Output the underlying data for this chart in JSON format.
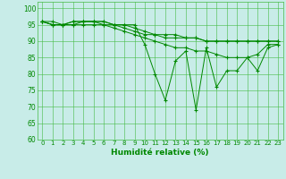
{
  "xlabel": "Humidité relative (%)",
  "background_color": "#c8ece8",
  "grid_color": "#44bb44",
  "line_color": "#008800",
  "xlim": [
    -0.5,
    23.5
  ],
  "ylim": [
    60,
    102
  ],
  "yticks": [
    60,
    65,
    70,
    75,
    80,
    85,
    90,
    95,
    100
  ],
  "xticks": [
    0,
    1,
    2,
    3,
    4,
    5,
    6,
    7,
    8,
    9,
    10,
    11,
    12,
    13,
    14,
    15,
    16,
    17,
    18,
    19,
    20,
    21,
    22,
    23
  ],
  "lines": [
    [
      96,
      96,
      95,
      95,
      96,
      96,
      96,
      95,
      95,
      95,
      89,
      80,
      72,
      84,
      87,
      69,
      88,
      76,
      81,
      81,
      85,
      81,
      88,
      89
    ],
    [
      96,
      95,
      95,
      95,
      95,
      95,
      95,
      94,
      93,
      92,
      91,
      90,
      89,
      88,
      88,
      87,
      87,
      86,
      85,
      85,
      85,
      86,
      89,
      89
    ],
    [
      96,
      95,
      95,
      96,
      96,
      96,
      96,
      95,
      94,
      93,
      92,
      92,
      91,
      91,
      91,
      91,
      90,
      90,
      90,
      90,
      90,
      90,
      90,
      90
    ],
    [
      96,
      95,
      95,
      96,
      96,
      96,
      95,
      95,
      95,
      94,
      93,
      92,
      92,
      92,
      91,
      91,
      90,
      90,
      90,
      90,
      90,
      90,
      90,
      90
    ]
  ]
}
